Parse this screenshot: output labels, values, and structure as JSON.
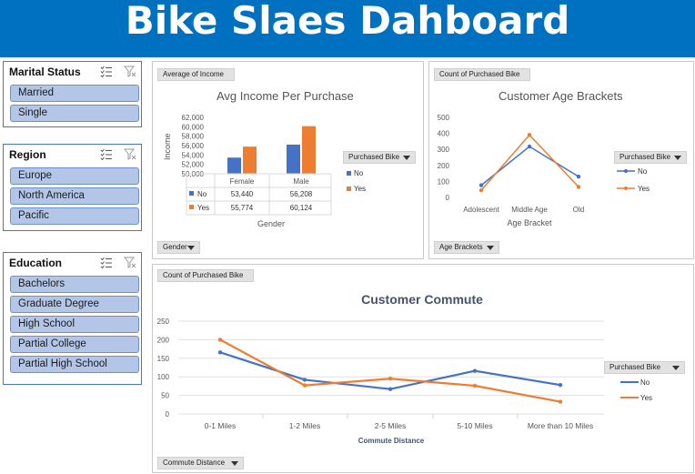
{
  "header": {
    "title": "Bike Slaes Dahboard",
    "bg_color": "#0070c0"
  },
  "slicers": [
    {
      "title": "Marital Status",
      "items": [
        "Married",
        "Single"
      ]
    },
    {
      "title": "Region",
      "items": [
        "Europe",
        "North America",
        "Pacific"
      ]
    },
    {
      "title": "Education",
      "items": [
        "Bachelors",
        "Graduate Degree",
        "High School",
        "Partial College",
        "Partial High School"
      ]
    }
  ],
  "slicer_icons": {
    "multi_select": "multi-select-icon",
    "clear_filter": "clear-filter-icon"
  },
  "colors": {
    "no": "#4472c4",
    "yes": "#ed7d31",
    "slicer_item": "#b4c6e7",
    "slicer_border": "#4a76b8"
  },
  "income_panel": {
    "value_field": "Average of Income",
    "axis_field": "Gender",
    "legend_field": "Purchased Bike"
  },
  "age_panel": {
    "value_field": "Count of Purchased Bike",
    "axis_field": "Age Brackets",
    "legend_field": "Purchased Bike"
  },
  "commute_panel": {
    "value_field": "Count of Purchased Bike",
    "axis_field": "Commute Distance",
    "legend_field": "Purchased Bike"
  },
  "chart_data": [
    {
      "type": "bar",
      "title": "Avg Income Per Purchase",
      "xlabel": "Gender",
      "ylabel": "Income",
      "categories": [
        "Female",
        "Male"
      ],
      "series": [
        {
          "name": "No",
          "values": [
            53440,
            56208
          ],
          "labels": [
            "53,440",
            "56,208"
          ]
        },
        {
          "name": "Yes",
          "values": [
            55774,
            60124
          ],
          "labels": [
            "55,774",
            "60,124"
          ]
        }
      ],
      "ylim": [
        50000,
        62000
      ],
      "yticks": [
        "62,000",
        "60,000",
        "58,000",
        "56,000",
        "54,000",
        "52,000",
        "50,000"
      ],
      "legend": "right",
      "data_table": true
    },
    {
      "type": "line",
      "title": "Customer Age Brackets",
      "xlabel": "Age Bracket",
      "ylabel": "",
      "categories": [
        "Adolescent",
        "Middle Age",
        "Old"
      ],
      "series": [
        {
          "name": "No",
          "values": [
            76,
            318,
            130
          ]
        },
        {
          "name": "Yes",
          "values": [
            45,
            390,
            66
          ]
        }
      ],
      "ylim": [
        0,
        500
      ],
      "yticks": [
        "500",
        "400",
        "300",
        "200",
        "100",
        "0"
      ],
      "legend": "right",
      "grid": false
    },
    {
      "type": "line",
      "title": "Customer Commute",
      "xlabel": "Commute Distance",
      "ylabel": "",
      "categories": [
        "0-1 Miles",
        "1-2 Miles",
        "2-5 Miles",
        "5-10 Miles",
        "More than 10 Miles"
      ],
      "series": [
        {
          "name": "No",
          "values": [
            166,
            92,
            67,
            116,
            78
          ]
        },
        {
          "name": "Yes",
          "values": [
            200,
            77,
            95,
            76,
            33
          ]
        }
      ],
      "ylim": [
        0,
        250
      ],
      "yticks": [
        "250",
        "200",
        "150",
        "100",
        "50",
        "0"
      ],
      "legend": "right",
      "grid": true
    }
  ]
}
